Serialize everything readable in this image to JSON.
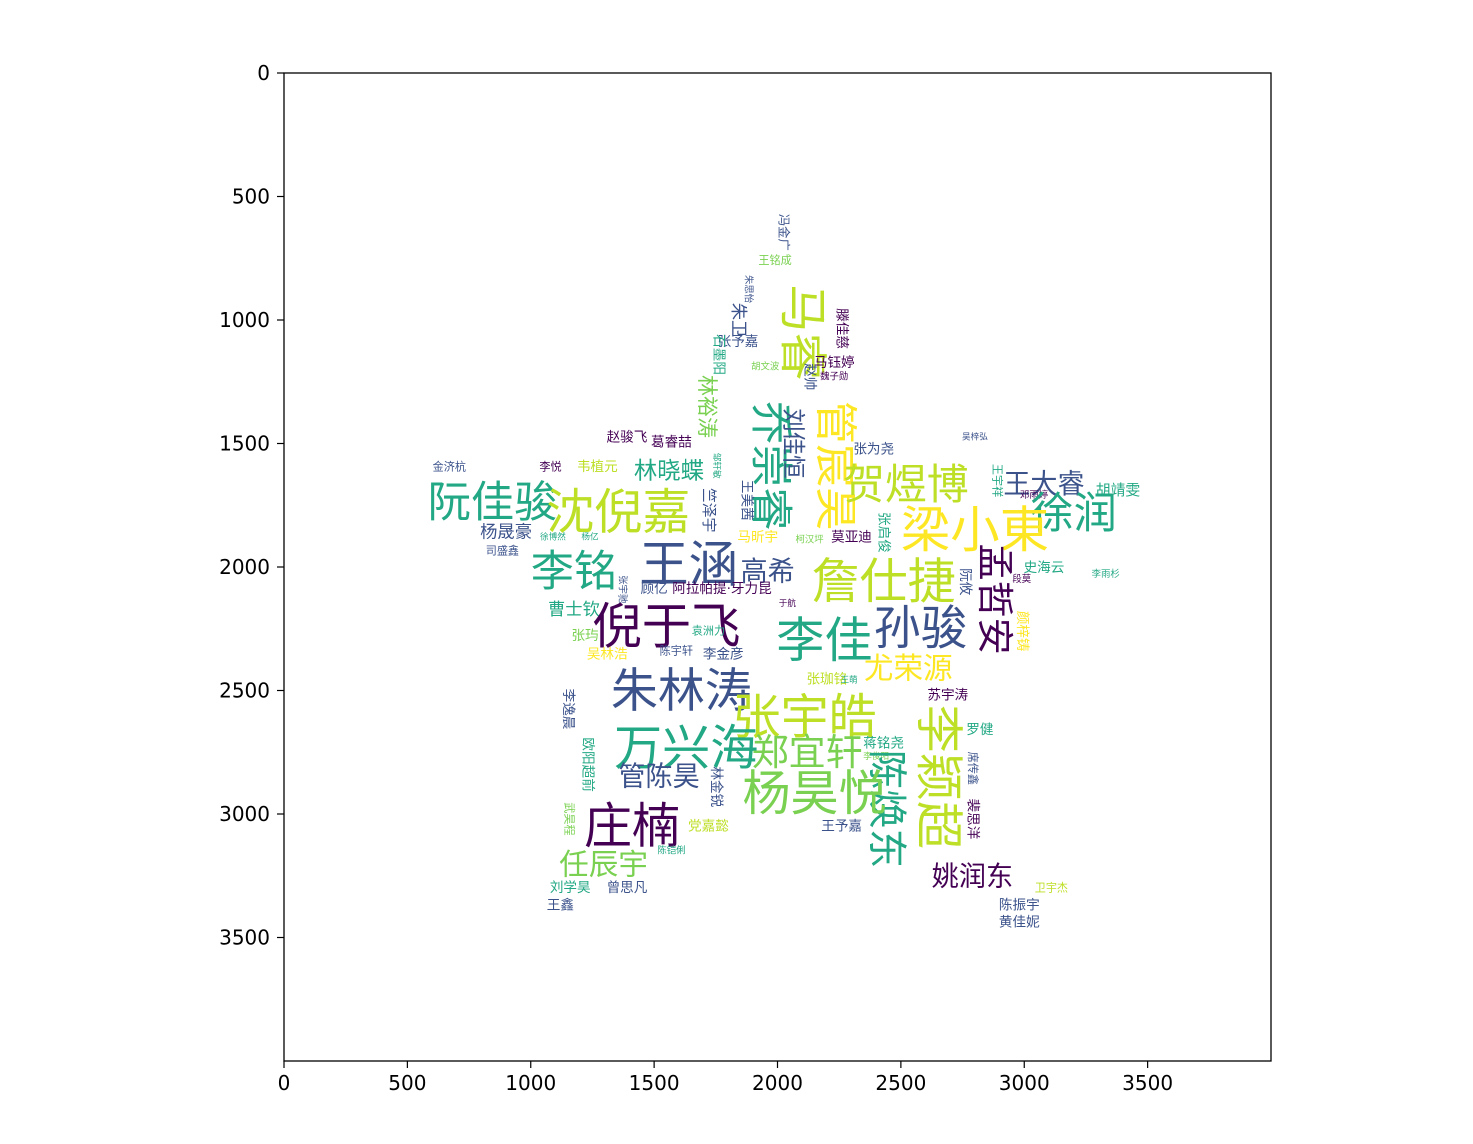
{
  "chart_data": {
    "type": "wordcloud",
    "title": "",
    "xlabel": "",
    "ylabel": "",
    "xlim": [
      0,
      4000
    ],
    "ylim": [
      4000,
      0
    ],
    "x_ticks": [
      0,
      500,
      1000,
      1500,
      2000,
      2500,
      3000,
      3500
    ],
    "y_ticks": [
      0,
      500,
      1000,
      1500,
      2000,
      2500,
      3000,
      3500
    ],
    "y_axis_inverted": true,
    "mask_shape": "star",
    "colormap": "viridis",
    "words": [
      {
        "text": "冯金广",
        "x": 2025,
        "y": 645,
        "size": 50,
        "vertical": true,
        "color": "#3b528b"
      },
      {
        "text": "王铭成",
        "x": 1990,
        "y": 760,
        "size": 45,
        "vertical": false,
        "color": "#7ad151"
      },
      {
        "text": "朱思怡",
        "x": 1880,
        "y": 875,
        "size": 38,
        "vertical": true,
        "color": "#3b528b"
      },
      {
        "text": "朱卫",
        "x": 1840,
        "y": 1000,
        "size": 70,
        "vertical": true,
        "color": "#3b528b"
      },
      {
        "text": "马睿",
        "x": 2100,
        "y": 1050,
        "size": 195,
        "vertical": true,
        "color": "#bddf26"
      },
      {
        "text": "滕佳慈",
        "x": 2260,
        "y": 1035,
        "size": 55,
        "vertical": true,
        "color": "#440154"
      },
      {
        "text": "张予嘉",
        "x": 1840,
        "y": 1090,
        "size": 55,
        "vertical": false,
        "color": "#3b528b"
      },
      {
        "text": "石墨阳",
        "x": 1760,
        "y": 1140,
        "size": 55,
        "vertical": true,
        "color": "#22a884"
      },
      {
        "text": "胡文波",
        "x": 1950,
        "y": 1190,
        "size": 38,
        "vertical": false,
        "color": "#7ad151"
      },
      {
        "text": "马钰婷",
        "x": 2230,
        "y": 1175,
        "size": 55,
        "vertical": false,
        "color": "#440154"
      },
      {
        "text": "赵帅",
        "x": 2130,
        "y": 1230,
        "size": 55,
        "vertical": true,
        "color": "#3b528b"
      },
      {
        "text": "魏子勋",
        "x": 2230,
        "y": 1230,
        "size": 38,
        "vertical": false,
        "color": "#440154"
      },
      {
        "text": "林裕涛",
        "x": 1715,
        "y": 1350,
        "size": 85,
        "vertical": true,
        "color": "#7ad151"
      },
      {
        "text": "乔崇睿",
        "x": 1970,
        "y": 1590,
        "size": 175,
        "vertical": true,
        "color": "#22a884"
      },
      {
        "text": "刘佳恒",
        "x": 2065,
        "y": 1500,
        "size": 95,
        "vertical": true,
        "color": "#3b528b"
      },
      {
        "text": "管宸昊",
        "x": 2230,
        "y": 1590,
        "size": 175,
        "vertical": true,
        "color": "#fde725"
      },
      {
        "text": "赵骏飞",
        "x": 1390,
        "y": 1475,
        "size": 55,
        "vertical": false,
        "color": "#440154"
      },
      {
        "text": "葛睿喆",
        "x": 1570,
        "y": 1495,
        "size": 55,
        "vertical": false,
        "color": "#440154"
      },
      {
        "text": "张为尧",
        "x": 2390,
        "y": 1525,
        "size": 55,
        "vertical": false,
        "color": "#3b528b"
      },
      {
        "text": "吴梓弘",
        "x": 2800,
        "y": 1475,
        "size": 35,
        "vertical": false,
        "color": "#3b528b"
      },
      {
        "text": "金济杭",
        "x": 670,
        "y": 1595,
        "size": 45,
        "vertical": false,
        "color": "#3b528b"
      },
      {
        "text": "李悦",
        "x": 1080,
        "y": 1595,
        "size": 45,
        "vertical": false,
        "color": "#440154"
      },
      {
        "text": "韦植元",
        "x": 1270,
        "y": 1595,
        "size": 55,
        "vertical": false,
        "color": "#bddf26"
      },
      {
        "text": "林晓蝶",
        "x": 1560,
        "y": 1610,
        "size": 95,
        "vertical": false,
        "color": "#22a884"
      },
      {
        "text": "邹轩敏",
        "x": 1750,
        "y": 1590,
        "size": 35,
        "vertical": true,
        "color": "#22a884"
      },
      {
        "text": "贺煜博",
        "x": 2520,
        "y": 1665,
        "size": 170,
        "vertical": false,
        "color": "#bddf26"
      },
      {
        "text": "王宇祥",
        "x": 2890,
        "y": 1650,
        "size": 45,
        "vertical": true,
        "color": "#22a884"
      },
      {
        "text": "王大睿",
        "x": 3080,
        "y": 1665,
        "size": 110,
        "vertical": false,
        "color": "#3b528b"
      },
      {
        "text": "胡靖雯",
        "x": 3380,
        "y": 1690,
        "size": 60,
        "vertical": false,
        "color": "#22a884"
      },
      {
        "text": "阮佳骏",
        "x": 845,
        "y": 1740,
        "size": 175,
        "vertical": false,
        "color": "#22a884"
      },
      {
        "text": "沈倪嘉",
        "x": 1355,
        "y": 1780,
        "size": 195,
        "vertical": false,
        "color": "#bddf26"
      },
      {
        "text": "竺泽宇",
        "x": 1720,
        "y": 1770,
        "size": 60,
        "vertical": true,
        "color": "#3b528b"
      },
      {
        "text": "王美茜",
        "x": 1875,
        "y": 1730,
        "size": 55,
        "vertical": true,
        "color": "#3b528b"
      },
      {
        "text": "邓雨婷",
        "x": 3040,
        "y": 1710,
        "size": 38,
        "vertical": false,
        "color": "#440154"
      },
      {
        "text": "徐润",
        "x": 3200,
        "y": 1785,
        "size": 175,
        "vertical": false,
        "color": "#22a884"
      },
      {
        "text": "梁小東",
        "x": 2800,
        "y": 1850,
        "size": 200,
        "vertical": false,
        "color": "#fde725"
      },
      {
        "text": "张启俊",
        "x": 2430,
        "y": 1860,
        "size": 55,
        "vertical": true,
        "color": "#22a884"
      },
      {
        "text": "莫亚迪",
        "x": 2300,
        "y": 1880,
        "size": 55,
        "vertical": false,
        "color": "#440154"
      },
      {
        "text": "杨晟豪",
        "x": 900,
        "y": 1860,
        "size": 70,
        "vertical": false,
        "color": "#3b528b"
      },
      {
        "text": "徐博然",
        "x": 1090,
        "y": 1880,
        "size": 35,
        "vertical": false,
        "color": "#22a884"
      },
      {
        "text": "杨亿",
        "x": 1240,
        "y": 1880,
        "size": 35,
        "vertical": false,
        "color": "#22a884"
      },
      {
        "text": "马昕宇",
        "x": 1920,
        "y": 1880,
        "size": 55,
        "vertical": false,
        "color": "#fde725"
      },
      {
        "text": "柯汉坪",
        "x": 2130,
        "y": 1890,
        "size": 38,
        "vertical": false,
        "color": "#7ad151"
      },
      {
        "text": "司盛鑫",
        "x": 885,
        "y": 1935,
        "size": 45,
        "vertical": false,
        "color": "#3b528b"
      },
      {
        "text": "王涵",
        "x": 1640,
        "y": 1990,
        "size": 200,
        "vertical": false,
        "color": "#3b528b"
      },
      {
        "text": "李铭",
        "x": 1175,
        "y": 2020,
        "size": 175,
        "vertical": false,
        "color": "#22a884"
      },
      {
        "text": "高希",
        "x": 1960,
        "y": 2020,
        "size": 110,
        "vertical": false,
        "color": "#3b528b"
      },
      {
        "text": "詹仕捷",
        "x": 2430,
        "y": 2060,
        "size": 195,
        "vertical": false,
        "color": "#bddf26"
      },
      {
        "text": "孟哲安",
        "x": 2880,
        "y": 2130,
        "size": 150,
        "vertical": true,
        "color": "#440154"
      },
      {
        "text": "史海云",
        "x": 3080,
        "y": 2005,
        "size": 55,
        "vertical": false,
        "color": "#22a884"
      },
      {
        "text": "李雨杉",
        "x": 3330,
        "y": 2030,
        "size": 38,
        "vertical": false,
        "color": "#22a884"
      },
      {
        "text": "阮攸",
        "x": 2760,
        "y": 2060,
        "size": 55,
        "vertical": true,
        "color": "#3b528b"
      },
      {
        "text": "段莫",
        "x": 2990,
        "y": 2050,
        "size": 38,
        "vertical": false,
        "color": "#440154"
      },
      {
        "text": "张宇驰",
        "x": 1370,
        "y": 2090,
        "size": 38,
        "vertical": true,
        "color": "#3b528b"
      },
      {
        "text": "顾亿",
        "x": 1500,
        "y": 2090,
        "size": 55,
        "vertical": false,
        "color": "#3b528b"
      },
      {
        "text": "阿拉帕提·牙力昆",
        "x": 1775,
        "y": 2090,
        "size": 55,
        "vertical": false,
        "color": "#440154"
      },
      {
        "text": "于航",
        "x": 2040,
        "y": 2150,
        "size": 35,
        "vertical": false,
        "color": "#440154"
      },
      {
        "text": "曹士钦",
        "x": 1175,
        "y": 2175,
        "size": 70,
        "vertical": false,
        "color": "#22a884"
      },
      {
        "text": "倪于飞",
        "x": 1550,
        "y": 2240,
        "size": 200,
        "vertical": false,
        "color": "#440154"
      },
      {
        "text": "李佳",
        "x": 2190,
        "y": 2300,
        "size": 195,
        "vertical": false,
        "color": "#22a884"
      },
      {
        "text": "孙骏",
        "x": 2580,
        "y": 2250,
        "size": 190,
        "vertical": false,
        "color": "#3b528b"
      },
      {
        "text": "颜梓铸",
        "x": 2990,
        "y": 2260,
        "size": 55,
        "vertical": true,
        "color": "#fde725"
      },
      {
        "text": "张玙",
        "x": 1220,
        "y": 2280,
        "size": 55,
        "vertical": false,
        "color": "#7ad151"
      },
      {
        "text": "袁洲力",
        "x": 1720,
        "y": 2260,
        "size": 45,
        "vertical": false,
        "color": "#22a884"
      },
      {
        "text": "吴林浩",
        "x": 1310,
        "y": 2355,
        "size": 55,
        "vertical": false,
        "color": "#fde725"
      },
      {
        "text": "陈宇轩",
        "x": 1590,
        "y": 2340,
        "size": 45,
        "vertical": false,
        "color": "#3b528b"
      },
      {
        "text": "李金彦",
        "x": 1780,
        "y": 2355,
        "size": 55,
        "vertical": false,
        "color": "#3b528b"
      },
      {
        "text": "尤荣源",
        "x": 2530,
        "y": 2410,
        "size": 120,
        "vertical": false,
        "color": "#fde725"
      },
      {
        "text": "朱林涛",
        "x": 1610,
        "y": 2505,
        "size": 190,
        "vertical": false,
        "color": "#3b528b"
      },
      {
        "text": "张珈铭",
        "x": 2200,
        "y": 2455,
        "size": 55,
        "vertical": false,
        "color": "#bddf26"
      },
      {
        "text": "王萌",
        "x": 2290,
        "y": 2460,
        "size": 35,
        "vertical": false,
        "color": "#22a884"
      },
      {
        "text": "苏宇涛",
        "x": 2690,
        "y": 2520,
        "size": 55,
        "vertical": false,
        "color": "#440154"
      },
      {
        "text": "李逸晨",
        "x": 1150,
        "y": 2575,
        "size": 55,
        "vertical": true,
        "color": "#3b528b"
      },
      {
        "text": "张宇皓",
        "x": 2110,
        "y": 2610,
        "size": 195,
        "vertical": false,
        "color": "#bddf26"
      },
      {
        "text": "万兴海",
        "x": 1630,
        "y": 2735,
        "size": 195,
        "vertical": false,
        "color": "#22a884"
      },
      {
        "text": "郑宜轩",
        "x": 2120,
        "y": 2750,
        "size": 150,
        "vertical": false,
        "color": "#7ad151"
      },
      {
        "text": "李颖超",
        "x": 2650,
        "y": 2850,
        "size": 195,
        "vertical": true,
        "color": "#bddf26"
      },
      {
        "text": "罗健",
        "x": 2820,
        "y": 2660,
        "size": 55,
        "vertical": false,
        "color": "#22a884"
      },
      {
        "text": "蒋铭尧",
        "x": 2430,
        "y": 2715,
        "size": 55,
        "vertical": false,
        "color": "#22a884"
      },
      {
        "text": "欧阳超前",
        "x": 1230,
        "y": 2800,
        "size": 55,
        "vertical": true,
        "color": "#22a884"
      },
      {
        "text": "李俊阳",
        "x": 2400,
        "y": 2770,
        "size": 35,
        "vertical": false,
        "color": "#7ad151"
      },
      {
        "text": "席传鑫",
        "x": 2790,
        "y": 2815,
        "size": 45,
        "vertical": true,
        "color": "#3b528b"
      },
      {
        "text": "管陈昊",
        "x": 1520,
        "y": 2850,
        "size": 110,
        "vertical": false,
        "color": "#3b528b"
      },
      {
        "text": "林金锐",
        "x": 1750,
        "y": 2890,
        "size": 55,
        "vertical": true,
        "color": "#3b528b"
      },
      {
        "text": "陈焕东",
        "x": 2440,
        "y": 2980,
        "size": 160,
        "vertical": true,
        "color": "#22a884"
      },
      {
        "text": "杨昊悦",
        "x": 2150,
        "y": 2920,
        "size": 195,
        "vertical": false,
        "color": "#7ad151"
      },
      {
        "text": "裴思洋",
        "x": 2790,
        "y": 3020,
        "size": 55,
        "vertical": true,
        "color": "#440154"
      },
      {
        "text": "武昊程",
        "x": 1155,
        "y": 3020,
        "size": 45,
        "vertical": true,
        "color": "#7ad151"
      },
      {
        "text": "庄楠",
        "x": 1410,
        "y": 3050,
        "size": 195,
        "vertical": false,
        "color": "#440154"
      },
      {
        "text": "党嘉懿",
        "x": 1720,
        "y": 3050,
        "size": 55,
        "vertical": false,
        "color": "#bddf26"
      },
      {
        "text": "王予嘉",
        "x": 2260,
        "y": 3050,
        "size": 55,
        "vertical": false,
        "color": "#3b528b"
      },
      {
        "text": "陈铠俐",
        "x": 1570,
        "y": 3150,
        "size": 38,
        "vertical": false,
        "color": "#22a884"
      },
      {
        "text": "任辰宇",
        "x": 1295,
        "y": 3205,
        "size": 120,
        "vertical": false,
        "color": "#7ad151"
      },
      {
        "text": "姚润东",
        "x": 2790,
        "y": 3255,
        "size": 110,
        "vertical": false,
        "color": "#440154"
      },
      {
        "text": "刘学昊",
        "x": 1160,
        "y": 3300,
        "size": 55,
        "vertical": false,
        "color": "#22a884"
      },
      {
        "text": "曾思凡",
        "x": 1390,
        "y": 3300,
        "size": 55,
        "vertical": false,
        "color": "#3b528b"
      },
      {
        "text": "卫宇杰",
        "x": 3110,
        "y": 3300,
        "size": 45,
        "vertical": false,
        "color": "#bddf26"
      },
      {
        "text": "陈振宇",
        "x": 2980,
        "y": 3370,
        "size": 55,
        "vertical": false,
        "color": "#3b528b"
      },
      {
        "text": "王鑫",
        "x": 1120,
        "y": 3370,
        "size": 55,
        "vertical": false,
        "color": "#3b528b"
      },
      {
        "text": "黄佳妮",
        "x": 2980,
        "y": 3440,
        "size": 55,
        "vertical": false,
        "color": "#3b528b"
      }
    ]
  }
}
